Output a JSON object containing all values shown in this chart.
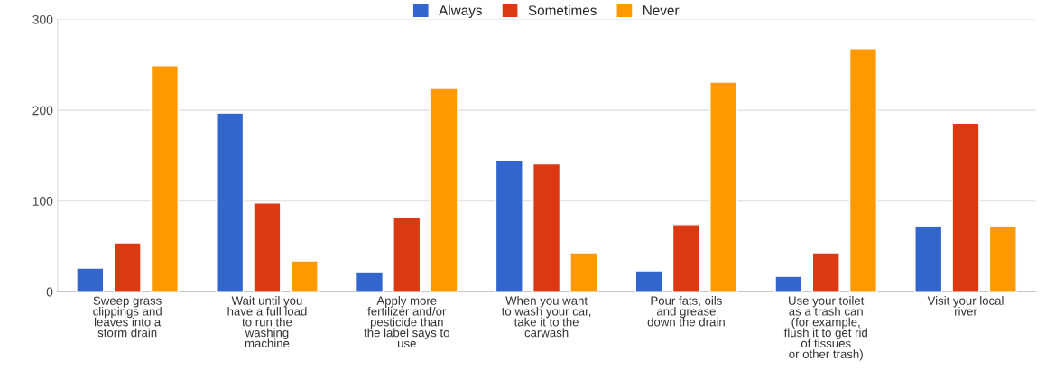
{
  "chart_data": {
    "type": "bar",
    "categories": [
      "Sweep grass\nclippings and\nleaves into a\nstorm drain",
      "Wait until you\nhave a full load\nto run the\nwashing\nmachine",
      "Apply more\nfertilizer and/or\npesticide than\nthe label says to\nuse",
      "When you want\nto wash your car,\ntake it to the\ncarwash",
      "Pour fats, oils\nand grease\ndown the drain",
      "Use your toilet\nas a trash can\n(for example,\nflush it to get rid\nof tissues\nor other trash)",
      "Visit your local\nriver"
    ],
    "series": [
      {
        "name": "Always",
        "color": "#3366cc",
        "values": [
          26,
          197,
          22,
          145,
          23,
          17,
          72
        ]
      },
      {
        "name": "Sometimes",
        "color": "#dc3912",
        "values": [
          54,
          98,
          82,
          141,
          74,
          43,
          186
        ]
      },
      {
        "name": "Never",
        "color": "#ff9900",
        "values": [
          249,
          34,
          224,
          43,
          231,
          268,
          72
        ]
      }
    ],
    "ylim": [
      0,
      300
    ],
    "yticks": [
      0,
      100,
      200,
      300
    ],
    "grid": "y",
    "legend": "top"
  }
}
